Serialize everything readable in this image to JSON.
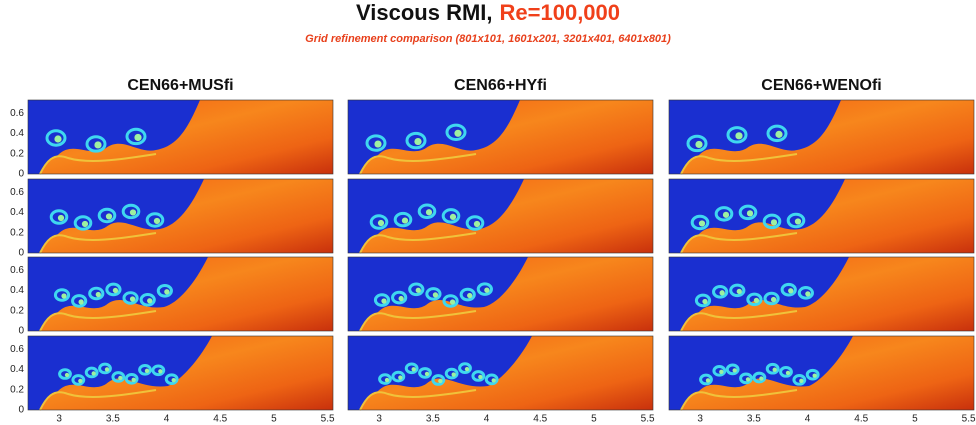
{
  "header": {
    "title": "Viscous RMI,",
    "title_highlight": "Re=100,000",
    "subtitle": "Grid refinement comparison (801x101, 1601x201, 3201x401, 6401x801)"
  },
  "columns": [
    "CEN66+MUSfi",
    "CEN66+HYfi",
    "CEN66+WENOfi"
  ],
  "axes": {
    "x_ticks": [
      3,
      3.5,
      4,
      4.5,
      5,
      5.5
    ],
    "x_range": [
      2.71,
      5.55
    ],
    "y_ticks": [
      0,
      0.2,
      0.4,
      0.6
    ],
    "y_range": [
      0,
      0.73
    ]
  }
}
